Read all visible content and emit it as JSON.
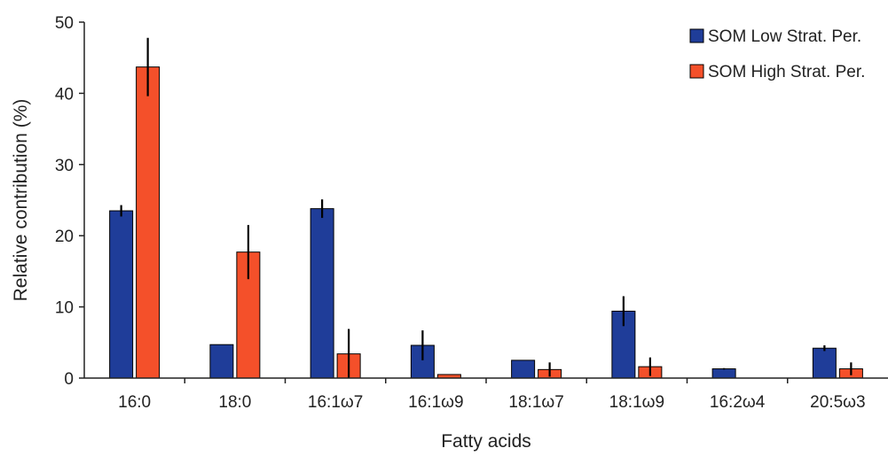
{
  "chart_data": {
    "type": "bar",
    "categories": [
      "16:0",
      "18:0",
      "16:1ω7",
      "16:1ω9",
      "18:1ω7",
      "18:1ω9",
      "16:2ω4",
      "20:5ω3"
    ],
    "series": [
      {
        "name": "SOM Low Strat. Per.",
        "color": "#1f3d99",
        "values": [
          23.5,
          4.7,
          23.8,
          4.6,
          2.5,
          9.4,
          1.3,
          4.2
        ],
        "errors": [
          0.8,
          0.0,
          1.3,
          2.1,
          0.0,
          2.1,
          0.1,
          0.4
        ]
      },
      {
        "name": "SOM High Strat. Per.",
        "color": "#f4502a",
        "values": [
          43.7,
          17.7,
          3.4,
          0.5,
          1.2,
          1.6,
          0.0,
          1.3
        ],
        "errors": [
          4.1,
          3.8,
          3.5,
          0.0,
          1.0,
          1.3,
          0.0,
          0.9
        ]
      }
    ],
    "xlabel": "Fatty acids",
    "ylabel": "Relative contribution (%)",
    "ylim": [
      0,
      50
    ],
    "yticks": [
      0,
      10,
      20,
      30,
      40,
      50
    ],
    "legend_position": "top-right",
    "grid": false
  }
}
